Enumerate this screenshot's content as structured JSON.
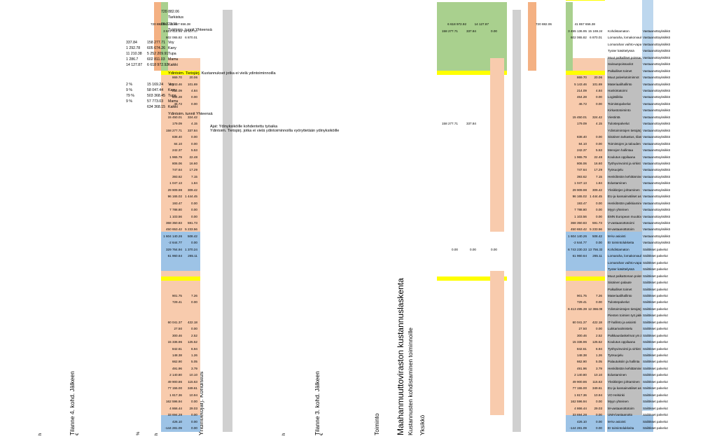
{
  "title": "Maahanmuuttoviraston kustannuslaskenta",
  "subtitle": "Kustannusten kohdistaminen toiminnoille",
  "headers": {
    "yksikko": "Yksikkö",
    "toiminto": "Toiminto",
    "tilanne3": "Tilanne 3. kohd. Jälkeen",
    "yhteistoiminto": "Yhdintietojärj. Kohdistus",
    "tilanne4": "Tilanne 4. kohd. Jälkeen",
    "eur": "€",
    "h": "h",
    "pct": "%"
  },
  "rows": [
    {
      "u": "Säilökset palvelut",
      "t": "EI toimintolukkeita",
      "v3": "-144 281.09",
      "h3": "0.00",
      "v4": "-144 281.09",
      "h4": "0.00"
    },
    {
      "u": "Säilökset palvelut",
      "t": "M-kv asiointi",
      "v3": "426.10",
      "h3": "0.00",
      "v4": "426.10",
      "h4": "0.00"
    },
    {
      "u": "Säilökset palvelut",
      "t": "UMA/vastaanotto",
      "v3": "33 694.28",
      "h3": "0.00",
      "v4": "33 694.28",
      "h4": "0.00"
    },
    {
      "u": "Säilökset palvelut",
      "t": "M-vastaanottotoim",
      "v3": "4 866.44",
      "h3": "29.03",
      "v4": "4 866.44",
      "h4": "29.03"
    },
    {
      "u": "Säilökset palvelut",
      "t": "Myyn yhteinen",
      "v3": "162 596.94",
      "h3": "0.00",
      "v4": "162 596.94",
      "h4": "0.00"
    },
    {
      "u": "Säilökset palvelut",
      "t": "VO Helsinki",
      "v3": "1 817.36",
      "h3": "10.94",
      "v4": "1 817.36",
      "h4": "10.94"
    },
    {
      "u": "Säilökset palvelut",
      "t": "EU-ja kansainväliset asi",
      "v3": "77 155.00",
      "h3": "349.61",
      "v4": "77 155.00",
      "h4": "349.61"
    },
    {
      "u": "Säilökset palvelut",
      "t": "Yksikköjen johtaminen",
      "v3": "49 900.86",
      "h3": "115.63",
      "v4": "49 900.86",
      "h4": "115.63"
    },
    {
      "u": "Säilökset palvelut",
      "t": "Edustaminen",
      "v3": "2 140.80",
      "h3": "10.10",
      "v4": "2 140.80",
      "h4": "10.10"
    },
    {
      "u": "Säilökset palvelut",
      "t": "Henkilöstön kehittäminen",
      "v3": "491.96",
      "h3": "3.79",
      "v4": "491.96",
      "h4": "3.79"
    },
    {
      "u": "Säilökset palvelut",
      "t": "Palautuksiin ja hallinta",
      "v3": "662.90",
      "h3": "5.05",
      "v4": "662.90",
      "h4": "5.05"
    },
    {
      "u": "Säilökset palvelut",
      "t": "Työsuojelu",
      "v3": "148.38",
      "h3": "1.26",
      "v4": "148.38",
      "h4": "1.26"
    },
    {
      "u": "Säilökset palvelut",
      "t": "Työhyvinvointi ja virkist",
      "v3": "842.61",
      "h3": "6.94",
      "v4": "842.61",
      "h4": "6.94"
    },
    {
      "u": "Säilökset palvelut",
      "t": "Koulutus oppilaana",
      "v3": "15 336.96",
      "h3": "125.52",
      "v4": "15 336.96",
      "h4": "125.52"
    },
    {
      "u": "Säilökset palvelut",
      "t": "Palkkauslaskelmat ym.tiliä",
      "v3": "300.46",
      "h3": "2.52",
      "v4": "300.46",
      "h4": "2.52"
    },
    {
      "u": "Säilökset palvelut",
      "t": "Lukkarivalmistelu",
      "v3": "27.50",
      "h3": "0.00",
      "v4": "27.50",
      "h4": "0.00"
    },
    {
      "u": "Säilökset palvelut",
      "t": "IT-hallinto ja asiointi",
      "v3": "60 041.37",
      "h3": "422.18",
      "v4": "60 041.37",
      "h4": "422.18"
    },
    {
      "u": "Säilökset palvelut",
      "t": "Pienten toimien työ jakkit",
      "v3": "",
      "h3": "",
      "v4": "",
      "h4": ""
    },
    {
      "u": "Säilökset palvelut",
      "t": "Ydintoimintojen tietojärj",
      "v3": "6 413 495.39",
      "h3": "12 366.09",
      "v4": "",
      "h4": ""
    },
    {
      "u": "Säilökset palvelut",
      "t": "Tulostepalvelut",
      "v3": "729.41",
      "h3": "0.00",
      "v4": "729.41",
      "h4": "0.00"
    },
    {
      "u": "Säilökset palvelut",
      "t": "Materiaalihallinto",
      "v3": "901.75",
      "h3": "7.26",
      "v4": "901.75",
      "h4": "7.26"
    },
    {
      "u": "Säilökset palvelut",
      "t": "Palkalliset toimet",
      "v3": "",
      "h3": "",
      "v4": "",
      "h4": ""
    },
    {
      "u": "Säilökset palvelut",
      "t": "Sisäinen palaute",
      "v3": "",
      "h3": "",
      "v4": "",
      "h4": ""
    },
    {
      "u": "Säilökset palvelut",
      "t": "Muut palkattoman poissaolo",
      "v3": "",
      "h3": "",
      "v4": "",
      "h4": ""
    },
    {
      "u": "Säilökset palvelut",
      "t": "Tyoter käsittelyssä",
      "v3": "",
      "h3": "",
      "v4": "",
      "h4": ""
    },
    {
      "u": "Säilökset palvelut",
      "t": "Lomarahan vaihto-vapaa",
      "v3": "",
      "h3": "",
      "v4": "",
      "h4": ""
    },
    {
      "u": "Säilökset palvelut",
      "t": "Lomaraha, lomakorvaukset",
      "v3": "61 960.64",
      "h3": "265.11",
      "v4": "61 960.64",
      "h4": "265.11"
    },
    {
      "u": "Säilökset palvelut",
      "t": "Kohdistamaton",
      "v3": "6 743 230.33",
      "h3": "13 756.33",
      "v4": "329 764.94",
      "h4": "1 370.24"
    },
    {
      "u": "Vastaanottoyksikkö",
      "t": "EI toimintolukkeita",
      "v3": "-2 644.77",
      "h3": "0.00",
      "v4": "-2 644.77",
      "h4": "0.00"
    },
    {
      "u": "Vastaanottoyksikkö",
      "t": "M-kv asiointi",
      "v3": "1 604 140.26",
      "h3": "508.42",
      "v4": "1 604 140.26",
      "h4": "508.42"
    },
    {
      "u": "Vastaanottoyksikkö",
      "t": "M-vastaanottotoim",
      "v3": "450 653.42",
      "h3": "5 233.56",
      "v4": "450 653.42",
      "h4": "5 233.56"
    },
    {
      "u": "Vastaanottoyksikkö",
      "t": "V-vastaanottotoimi",
      "v3": "368 350.83",
      "h3": "591.73",
      "v4": "368 350.83",
      "h4": "591.73"
    },
    {
      "u": "Vastaanottoyksikkö",
      "t": "EMN European muuttoverk",
      "v3": "1 103.56",
      "h3": "0.00",
      "v4": "1 103.56",
      "h4": "0.00"
    },
    {
      "u": "Vastaanottoyksikkö",
      "t": "Myyn yhteinen",
      "v3": "7 788.80",
      "h3": "0.00",
      "v4": "7 788.80",
      "h4": "0.00"
    },
    {
      "u": "Vastaanottoyksikkö",
      "t": "Henkilöstön palkkiaminen",
      "v3": "193.47",
      "h3": "0.00",
      "v4": "193.47",
      "h4": "0.00"
    },
    {
      "u": "Vastaanottoyksikkö",
      "t": "EU-ja kansainväliset asi",
      "v3": "96 165.02",
      "h3": "1 444.45",
      "v4": "96 165.02",
      "h4": "1 444.45"
    },
    {
      "u": "Vastaanottoyksikkö",
      "t": "Yksikköjen johtaminen",
      "v3": "29 909.98",
      "h3": "309.42",
      "v4": "29 909.98",
      "h4": "309.42"
    },
    {
      "u": "Vastaanottoyksikkö",
      "t": "Edustaminen",
      "v3": "1 047.13",
      "h3": "1.84",
      "v4": "1 047.13",
      "h4": "1.84"
    },
    {
      "u": "Vastaanottoyksikkö",
      "t": "Henkilöstön kehittäminen",
      "v3": "393.62",
      "h3": "7.15",
      "v4": "393.62",
      "h4": "7.15"
    },
    {
      "u": "Vastaanottoyksikkö",
      "t": "Työsuojelu",
      "v3": "747.64",
      "h3": "17.29",
      "v4": "747.64",
      "h4": "17.29"
    },
    {
      "u": "Vastaanottoyksikkö",
      "t": "Työhyvinvointi ja virkist",
      "v3": "806.06",
      "h3": "16.60",
      "v4": "806.06",
      "h4": "16.60"
    },
    {
      "u": "Vastaanottoyksikkö",
      "t": "Koulutus oppilaana",
      "v3": "1 965.79",
      "h3": "22.48",
      "v4": "1 965.79",
      "h4": "22.48"
    },
    {
      "u": "Vastaanottoyksikkö",
      "t": "Menojen hallintaa",
      "v3": "242.37",
      "h3": "5.53",
      "v4": "242.37",
      "h4": "5.53"
    },
    {
      "u": "Vastaanottoyksikkö",
      "t": "Toimintojen ja talouden suu",
      "v3": "84.10",
      "h3": "0.00",
      "v4": "84.10",
      "h4": "0.00"
    },
    {
      "u": "Vastaanottoyksikkö",
      "t": "Sisäinen tarkastus, tilas",
      "v3": "838.40",
      "h3": "0.00",
      "v4": "838.40",
      "h4": "0.00"
    },
    {
      "u": "Vastaanottoyksikkö",
      "t": "Ydintoimintojen tietojärj",
      "v3": "",
      "h3": "",
      "v4": "158 277.71",
      "h4": "337.84"
    },
    {
      "u": "Vastaanottoyksikkö",
      "t": "Tulostepalvelut",
      "v3": "179.09",
      "h3": "4.15",
      "v4": "179.09",
      "h4": "4.15"
    },
    {
      "u": "Vastaanottoyksikkö",
      "t": "Viestintä",
      "v3": "15 450.01",
      "h3": "324.42",
      "v4": "15 450.01",
      "h4": "324.42"
    },
    {
      "u": "Vastaanottoyksikkö",
      "t": "Kirkastotoiminto",
      "v3": "",
      "h3": "",
      "v4": "",
      "h4": ""
    },
    {
      "u": "Vastaanottoyksikkö",
      "t": "Toimistopalvelut",
      "v3": "46.72",
      "h3": "0.00",
      "v4": "46.72",
      "h4": "0.00"
    },
    {
      "u": "Vastaanottoyksikkö",
      "t": "Logistiikka",
      "v3": "464.28",
      "h3": "0.00",
      "v4": "464.28",
      "h4": "0.00"
    },
    {
      "u": "Vastaanottoyksikkö",
      "t": "Hankintatoimi",
      "v3": "214.09",
      "h3": "4.84",
      "v4": "214.09",
      "h4": "4.84"
    },
    {
      "u": "Vastaanottoyksikkö",
      "t": "Materiaalihallinto",
      "v3": "5 143.46",
      "h3": "101.69",
      "v4": "5 143.46",
      "h4": "101.69"
    },
    {
      "u": "Vastaanottoyksikkö",
      "t": "Muut palvelutoiminnot",
      "v3": "869.70",
      "h3": "20.06",
      "v4": "869.70",
      "h4": "20.06"
    },
    {
      "u": "Vastaanottoyksikkö",
      "t": "Palkalliset toimet",
      "v3": "",
      "h3": "",
      "v4": "",
      "h4": ""
    },
    {
      "u": "Vastaanottoyksikkö",
      "t": "Sairauspoissaolot",
      "v3": "",
      "h3": "",
      "v4": "",
      "h4": ""
    },
    {
      "u": "Vastaanottoyksikkö",
      "t": "Muut palkalliset poissaolot",
      "v3": "",
      "h3": "",
      "v4": "",
      "h4": ""
    },
    {
      "u": "Vastaanottoyksikkö",
      "t": "Tyoter käsittelyssä",
      "v3": "",
      "h3": "",
      "v4": "",
      "h4": ""
    },
    {
      "u": "Vastaanottoyksikkö",
      "t": "Lomarahan vaihto-vapaa",
      "v3": "",
      "h3": "",
      "v4": "",
      "h4": ""
    },
    {
      "u": "Vastaanottoyksikkö",
      "t": "Lomaraha, lomakorvaukset",
      "v3": "602 065.82",
      "h3": "6 870.01",
      "v4": "602 065.82",
      "h4": "6 870.01"
    },
    {
      "u": "Vastaanottoyksikkö",
      "t": "Kohdistamaton",
      "v3": "3 455 136.95",
      "h3": "15 169.24",
      "v4": "3 613 414.66",
      "h4": "15 507.07"
    }
  ],
  "yt_yellow": {
    "v": "0.00",
    "h": "0.00",
    "p": "0.00"
  },
  "yt_yellow2": {
    "v": "158 277.71",
    "h": "337.84",
    "p": "0.00"
  },
  "yt_yksikko_row": {
    "v": "158 277.71",
    "h": "337.84"
  },
  "totals": {
    "t3_total": "41 857 656.38",
    "t3_h": "720 882.06",
    "yt_total": "6 618 972.92",
    "yt_h": "14 127.87",
    "t4_total": "41 857 656.38",
    "t4_h": "720 882.06"
  },
  "summary": {
    "note1": "Ydintoim. Tietojärj. jotka ei vielä ydintoiminnoilla vyöryttetään ydinyksiköille",
    "note2": "Ajat: Ydinyksiköille kohdentettu työaika",
    "block1_title": "Ydintoim. tunnit Yhteensä",
    "block1_rows": [
      {
        "k": "Kaikki",
        "v": "634 368.15",
        "p": ""
      },
      {
        "k": "Mamu",
        "v": "57 773.03",
        "p": "9 %"
      },
      {
        "k": "Tupa",
        "v": "503 368.45",
        "p": "79 %"
      },
      {
        "k": "Kany",
        "v": "58 047.44",
        "p": "9 %"
      },
      {
        "k": "Voy",
        "v": "15 169.24",
        "p": "2 %"
      }
    ],
    "block2_title": "Ydintoim. Tietojärj. Kustannukset jotka ei vielä ydintoiminnoilla",
    "block2_rows": [
      {
        "k": "Kaikki",
        "v": "6 618 972.92",
        "h": "14 127.87"
      },
      {
        "k": "Mamu",
        "v": "602 811.03",
        "h": "1 286.7"
      },
      {
        "k": "Tupa",
        "v": "5 252 209.91",
        "h": "11 210.38"
      },
      {
        "k": "Kany",
        "v": "605 674.26",
        "h": "1 292.78"
      },
      {
        "k": "Voy",
        "v": "158 277.71",
        "h": "337.84"
      }
    ],
    "block3_title": "Tukitoim. tunnit Yhteensä",
    "block3_val": "86 323.91",
    "block4_title": "Tarkistus",
    "block4_val": "720 882.06"
  }
}
